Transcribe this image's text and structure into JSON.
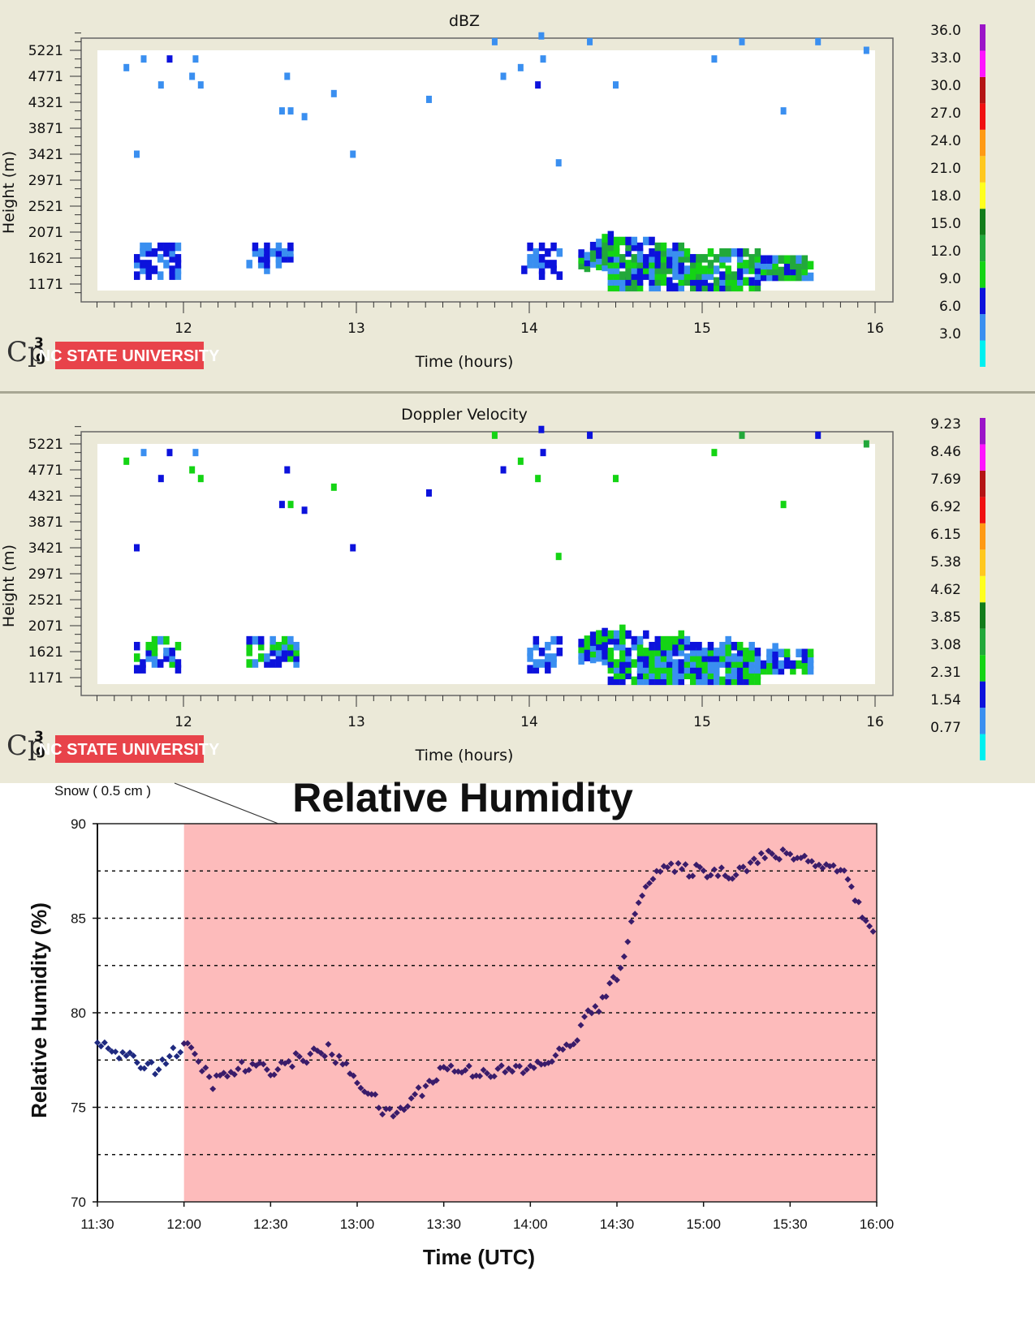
{
  "radar_panels": [
    {
      "title": "dBZ",
      "ylabel": "Height (m)",
      "xlabel": "Time (hours)",
      "yticks": [
        "5221",
        "4771",
        "4321",
        "3871",
        "3421",
        "2971",
        "2521",
        "2071",
        "1621",
        "1171"
      ],
      "xticks": [
        "12",
        "13",
        "14",
        "15",
        "16"
      ],
      "colorbar": [
        "36.0",
        "33.0",
        "30.0",
        "27.0",
        "24.0",
        "21.0",
        "18.0",
        "15.0",
        "12.0",
        "9.0",
        "6.0",
        "3.0"
      ],
      "logo": "Cp",
      "logo_sub": "3",
      "logo_sub2": "g",
      "badge": "NC STATE UNIVERSITY"
    },
    {
      "title": "Doppler Velocity",
      "ylabel": "Height (m)",
      "xlabel": "Time (hours)",
      "yticks": [
        "5221",
        "4771",
        "4321",
        "3871",
        "3421",
        "2971",
        "2521",
        "2071",
        "1621",
        "1171"
      ],
      "xticks": [
        "12",
        "13",
        "14",
        "15",
        "16"
      ],
      "colorbar": [
        "9.23",
        "8.46",
        "7.69",
        "6.92",
        "6.15",
        "5.38",
        "4.62",
        "3.85",
        "3.08",
        "2.31",
        "1.54",
        "0.77"
      ],
      "logo": "Cp",
      "logo_sub": "3",
      "logo_sub2": "g",
      "badge": "NC STATE UNIVERSITY"
    }
  ],
  "colors": {
    "palette": [
      "#00f0f0",
      "#3a8ff0",
      "#0c12dc",
      "#14d414",
      "#22a83a",
      "#127c1a",
      "#ffff1e",
      "#ffc81e",
      "#ff9a14",
      "#f01010",
      "#b41414",
      "#ff14ff",
      "#9b14c8"
    ],
    "snow_shade": "#fdbbbb",
    "rh_points": "#3a1c6a",
    "rh_points_pre": "#1f2a80",
    "badge_red": "#e8434a",
    "panel_bg": "#ebe9d8"
  },
  "chart_data": [
    {
      "type": "heatmap",
      "title": "dBZ",
      "xlabel": "Time (hours)",
      "ylabel": "Height (m)",
      "xlim": [
        11.4,
        16.0
      ],
      "ylim": [
        1021,
        5521
      ],
      "note_cells": "each cell: [time_hours, height_m, colorbar_index]",
      "scattered_cells": [
        [
          11.67,
          4921,
          1
        ],
        [
          11.77,
          5071,
          1
        ],
        [
          11.92,
          5071,
          2
        ],
        [
          12.07,
          5071,
          1
        ],
        [
          11.87,
          4621,
          1
        ],
        [
          12.05,
          4771,
          1
        ],
        [
          12.1,
          4621,
          1
        ],
        [
          11.73,
          3421,
          1
        ],
        [
          12.6,
          4771,
          1
        ],
        [
          12.87,
          4471,
          1
        ],
        [
          12.57,
          4171,
          1
        ],
        [
          12.62,
          4171,
          1
        ],
        [
          12.7,
          4071,
          1
        ],
        [
          12.98,
          3421,
          1
        ],
        [
          13.42,
          4371,
          1
        ],
        [
          13.8,
          5371,
          1
        ],
        [
          13.85,
          4771,
          1
        ],
        [
          13.95,
          4921,
          1
        ],
        [
          14.05,
          4621,
          2
        ],
        [
          14.08,
          5071,
          1
        ],
        [
          14.07,
          5471,
          1
        ],
        [
          14.17,
          3271,
          1
        ],
        [
          14.35,
          5371,
          1
        ],
        [
          14.5,
          4621,
          1
        ],
        [
          15.07,
          5071,
          1
        ],
        [
          15.23,
          5371,
          1
        ],
        [
          15.47,
          4171,
          1
        ],
        [
          15.67,
          5371,
          1
        ],
        [
          15.95,
          5221,
          1
        ]
      ],
      "clusters": [
        {
          "t0": 11.73,
          "t1": 12.0,
          "h0": 1320,
          "h1": 1820,
          "colors": [
            1,
            2
          ],
          "density": 0.55
        },
        {
          "t0": 12.38,
          "t1": 12.68,
          "h0": 1420,
          "h1": 1820,
          "colors": [
            1,
            2
          ],
          "density": 0.5
        },
        {
          "t0": 13.97,
          "t1": 14.18,
          "h0": 1320,
          "h1": 1820,
          "colors": [
            1,
            2
          ],
          "density": 0.45
        },
        {
          "t0": 14.3,
          "t1": 15.65,
          "h0": 1120,
          "h1": 2050,
          "colors": [
            1,
            2,
            3,
            4
          ],
          "density": 0.85
        }
      ]
    },
    {
      "type": "heatmap",
      "title": "Doppler Velocity",
      "xlabel": "Time (hours)",
      "ylabel": "Height (m)",
      "xlim": [
        11.4,
        16.0
      ],
      "ylim": [
        1021,
        5521
      ],
      "note_cells": "each cell: [time_hours, height_m, colorbar_index]",
      "scattered_cells": [
        [
          11.67,
          4921,
          3
        ],
        [
          11.77,
          5071,
          1
        ],
        [
          11.92,
          5071,
          2
        ],
        [
          12.07,
          5071,
          1
        ],
        [
          11.87,
          4621,
          2
        ],
        [
          12.05,
          4771,
          3
        ],
        [
          12.1,
          4621,
          3
        ],
        [
          11.73,
          3421,
          2
        ],
        [
          12.6,
          4771,
          2
        ],
        [
          12.87,
          4471,
          3
        ],
        [
          12.57,
          4171,
          2
        ],
        [
          12.62,
          4171,
          3
        ],
        [
          12.7,
          4071,
          2
        ],
        [
          12.98,
          3421,
          2
        ],
        [
          13.42,
          4371,
          2
        ],
        [
          13.8,
          5371,
          3
        ],
        [
          13.85,
          4771,
          2
        ],
        [
          13.95,
          4921,
          3
        ],
        [
          14.05,
          4621,
          3
        ],
        [
          14.08,
          5071,
          2
        ],
        [
          14.07,
          5471,
          2
        ],
        [
          14.17,
          3271,
          3
        ],
        [
          14.35,
          5371,
          2
        ],
        [
          14.5,
          4621,
          3
        ],
        [
          15.07,
          5071,
          3
        ],
        [
          15.23,
          5371,
          4
        ],
        [
          15.47,
          4171,
          3
        ],
        [
          15.67,
          5371,
          2
        ],
        [
          15.95,
          5221,
          4
        ]
      ],
      "clusters": [
        {
          "t0": 11.73,
          "t1": 12.0,
          "h0": 1320,
          "h1": 1820,
          "colors": [
            1,
            2,
            3
          ],
          "density": 0.55
        },
        {
          "t0": 12.38,
          "t1": 12.68,
          "h0": 1420,
          "h1": 1820,
          "colors": [
            1,
            2,
            3
          ],
          "density": 0.5
        },
        {
          "t0": 13.97,
          "t1": 14.18,
          "h0": 1320,
          "h1": 1820,
          "colors": [
            1,
            2
          ],
          "density": 0.45
        },
        {
          "t0": 14.3,
          "t1": 15.65,
          "h0": 1120,
          "h1": 2050,
          "colors": [
            1,
            2,
            3
          ],
          "density": 0.9
        }
      ]
    },
    {
      "type": "scatter",
      "title": "Relative Humidity",
      "xlabel": "Time (UTC)",
      "ylabel": "Relative Humidity (%)",
      "xticks": [
        "11:30",
        "12:00",
        "12:30",
        "13:00",
        "13:30",
        "14:00",
        "14:30",
        "15:00",
        "15:30",
        "16:00"
      ],
      "yticks": [
        "70",
        "75",
        "80",
        "85",
        "90"
      ],
      "ylim": [
        70,
        90
      ],
      "xlim": [
        "11:30",
        "16:00"
      ],
      "grid": "dashed horizontal lines every 2.5%",
      "annotation": "Snow ( 0.5 cm )",
      "snow_period": [
        "12:00",
        "16:00"
      ],
      "series": [
        {
          "values": [
            [
              "11:30",
              78.4
            ],
            [
              "11:40",
              77.6
            ],
            [
              "11:50",
              77.1
            ],
            [
              "12:00",
              78.3
            ],
            [
              "12:05",
              77.4
            ],
            [
              "12:10",
              76.3
            ],
            [
              "12:20",
              77.1
            ],
            [
              "12:30",
              77.0
            ],
            [
              "12:40",
              77.6
            ],
            [
              "12:50",
              78.0
            ],
            [
              "13:00",
              76.5
            ],
            [
              "13:05",
              75.6
            ],
            [
              "13:10",
              74.6
            ],
            [
              "13:15",
              74.8
            ],
            [
              "13:20",
              75.6
            ],
            [
              "13:25",
              76.3
            ],
            [
              "13:30",
              77.1
            ],
            [
              "13:40",
              76.9
            ],
            [
              "13:50",
              76.9
            ],
            [
              "14:00",
              77.0
            ],
            [
              "14:10",
              77.8
            ],
            [
              "14:15",
              78.5
            ],
            [
              "14:20",
              79.9
            ],
            [
              "14:25",
              80.5
            ],
            [
              "14:30",
              82.0
            ],
            [
              "14:35",
              84.5
            ],
            [
              "14:40",
              87.0
            ],
            [
              "14:45",
              87.6
            ],
            [
              "15:00",
              87.5
            ],
            [
              "15:10",
              87.4
            ],
            [
              "15:20",
              88.2
            ],
            [
              "15:30",
              88.4
            ],
            [
              "15:40",
              87.9
            ],
            [
              "15:50",
              87.4
            ],
            [
              "15:55",
              85.0
            ],
            [
              "16:00",
              84.2
            ]
          ]
        }
      ]
    }
  ]
}
